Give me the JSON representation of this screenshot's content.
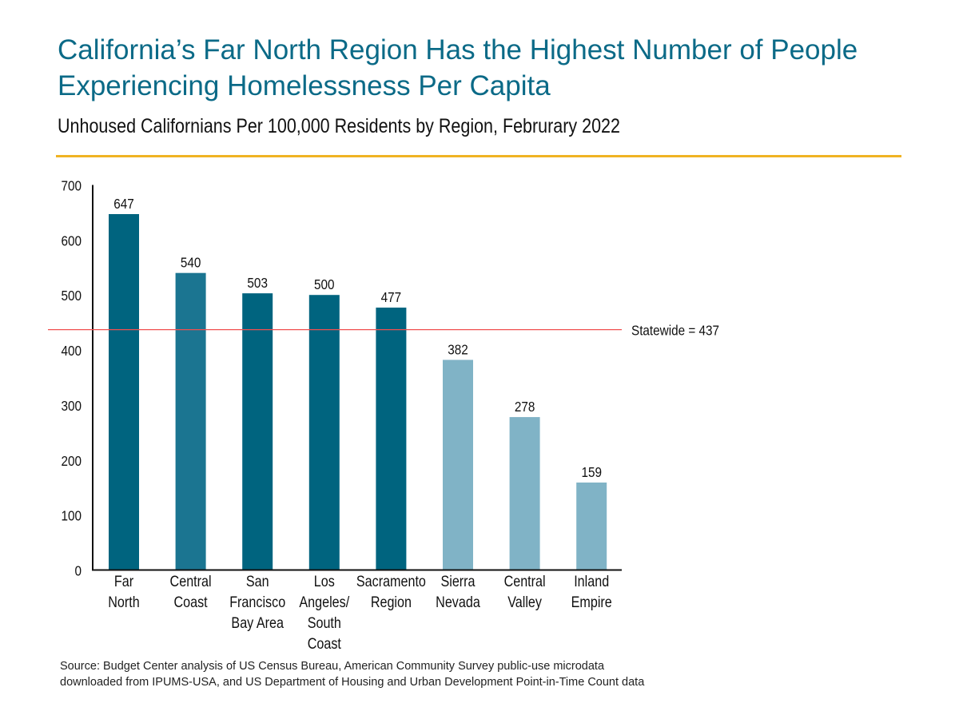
{
  "header": {
    "title": "California’s Far North Region Has the Highest Number of People Experiencing Homelessness Per Capita",
    "subtitle": "Unhoused Californians Per 100,000 Residents by Region, Februrary 2022"
  },
  "colors": {
    "title": "#0b6a87",
    "rule": "#f0b323",
    "dark_bar": "#00647f",
    "mid_bar": "#1b7591",
    "light_bar": "#80b3c6",
    "reference_line": "#f05050"
  },
  "chart_data": {
    "type": "bar",
    "categories": [
      [
        "Far",
        "North"
      ],
      [
        "Central",
        "Coast"
      ],
      [
        "San",
        "Francisco",
        "Bay Area"
      ],
      [
        "Los",
        "Angeles/",
        "South",
        "Coast"
      ],
      [
        "Sacramento",
        "Region"
      ],
      [
        "Sierra",
        "Nevada"
      ],
      [
        "Central",
        "Valley"
      ],
      [
        "Inland",
        "Empire"
      ]
    ],
    "values": [
      647,
      540,
      503,
      500,
      477,
      382,
      278,
      159
    ],
    "bar_colors": [
      "#00647f",
      "#1b7591",
      "#00647f",
      "#00647f",
      "#00647f",
      "#80b3c6",
      "#80b3c6",
      "#80b3c6"
    ],
    "ylim": [
      0,
      700
    ],
    "yticks": [
      0,
      100,
      200,
      300,
      400,
      500,
      600,
      700
    ],
    "grid": false,
    "reference_line": {
      "value": 437,
      "label": "Statewide = 437"
    },
    "xlabel": "",
    "ylabel": ""
  },
  "footer": {
    "source": "Source: Budget Center analysis of US Census Bureau, American Community Survey public-use microdata downloaded from IPUMS-USA, and US Department of Housing and Urban Development Point-in-Time Count data"
  }
}
